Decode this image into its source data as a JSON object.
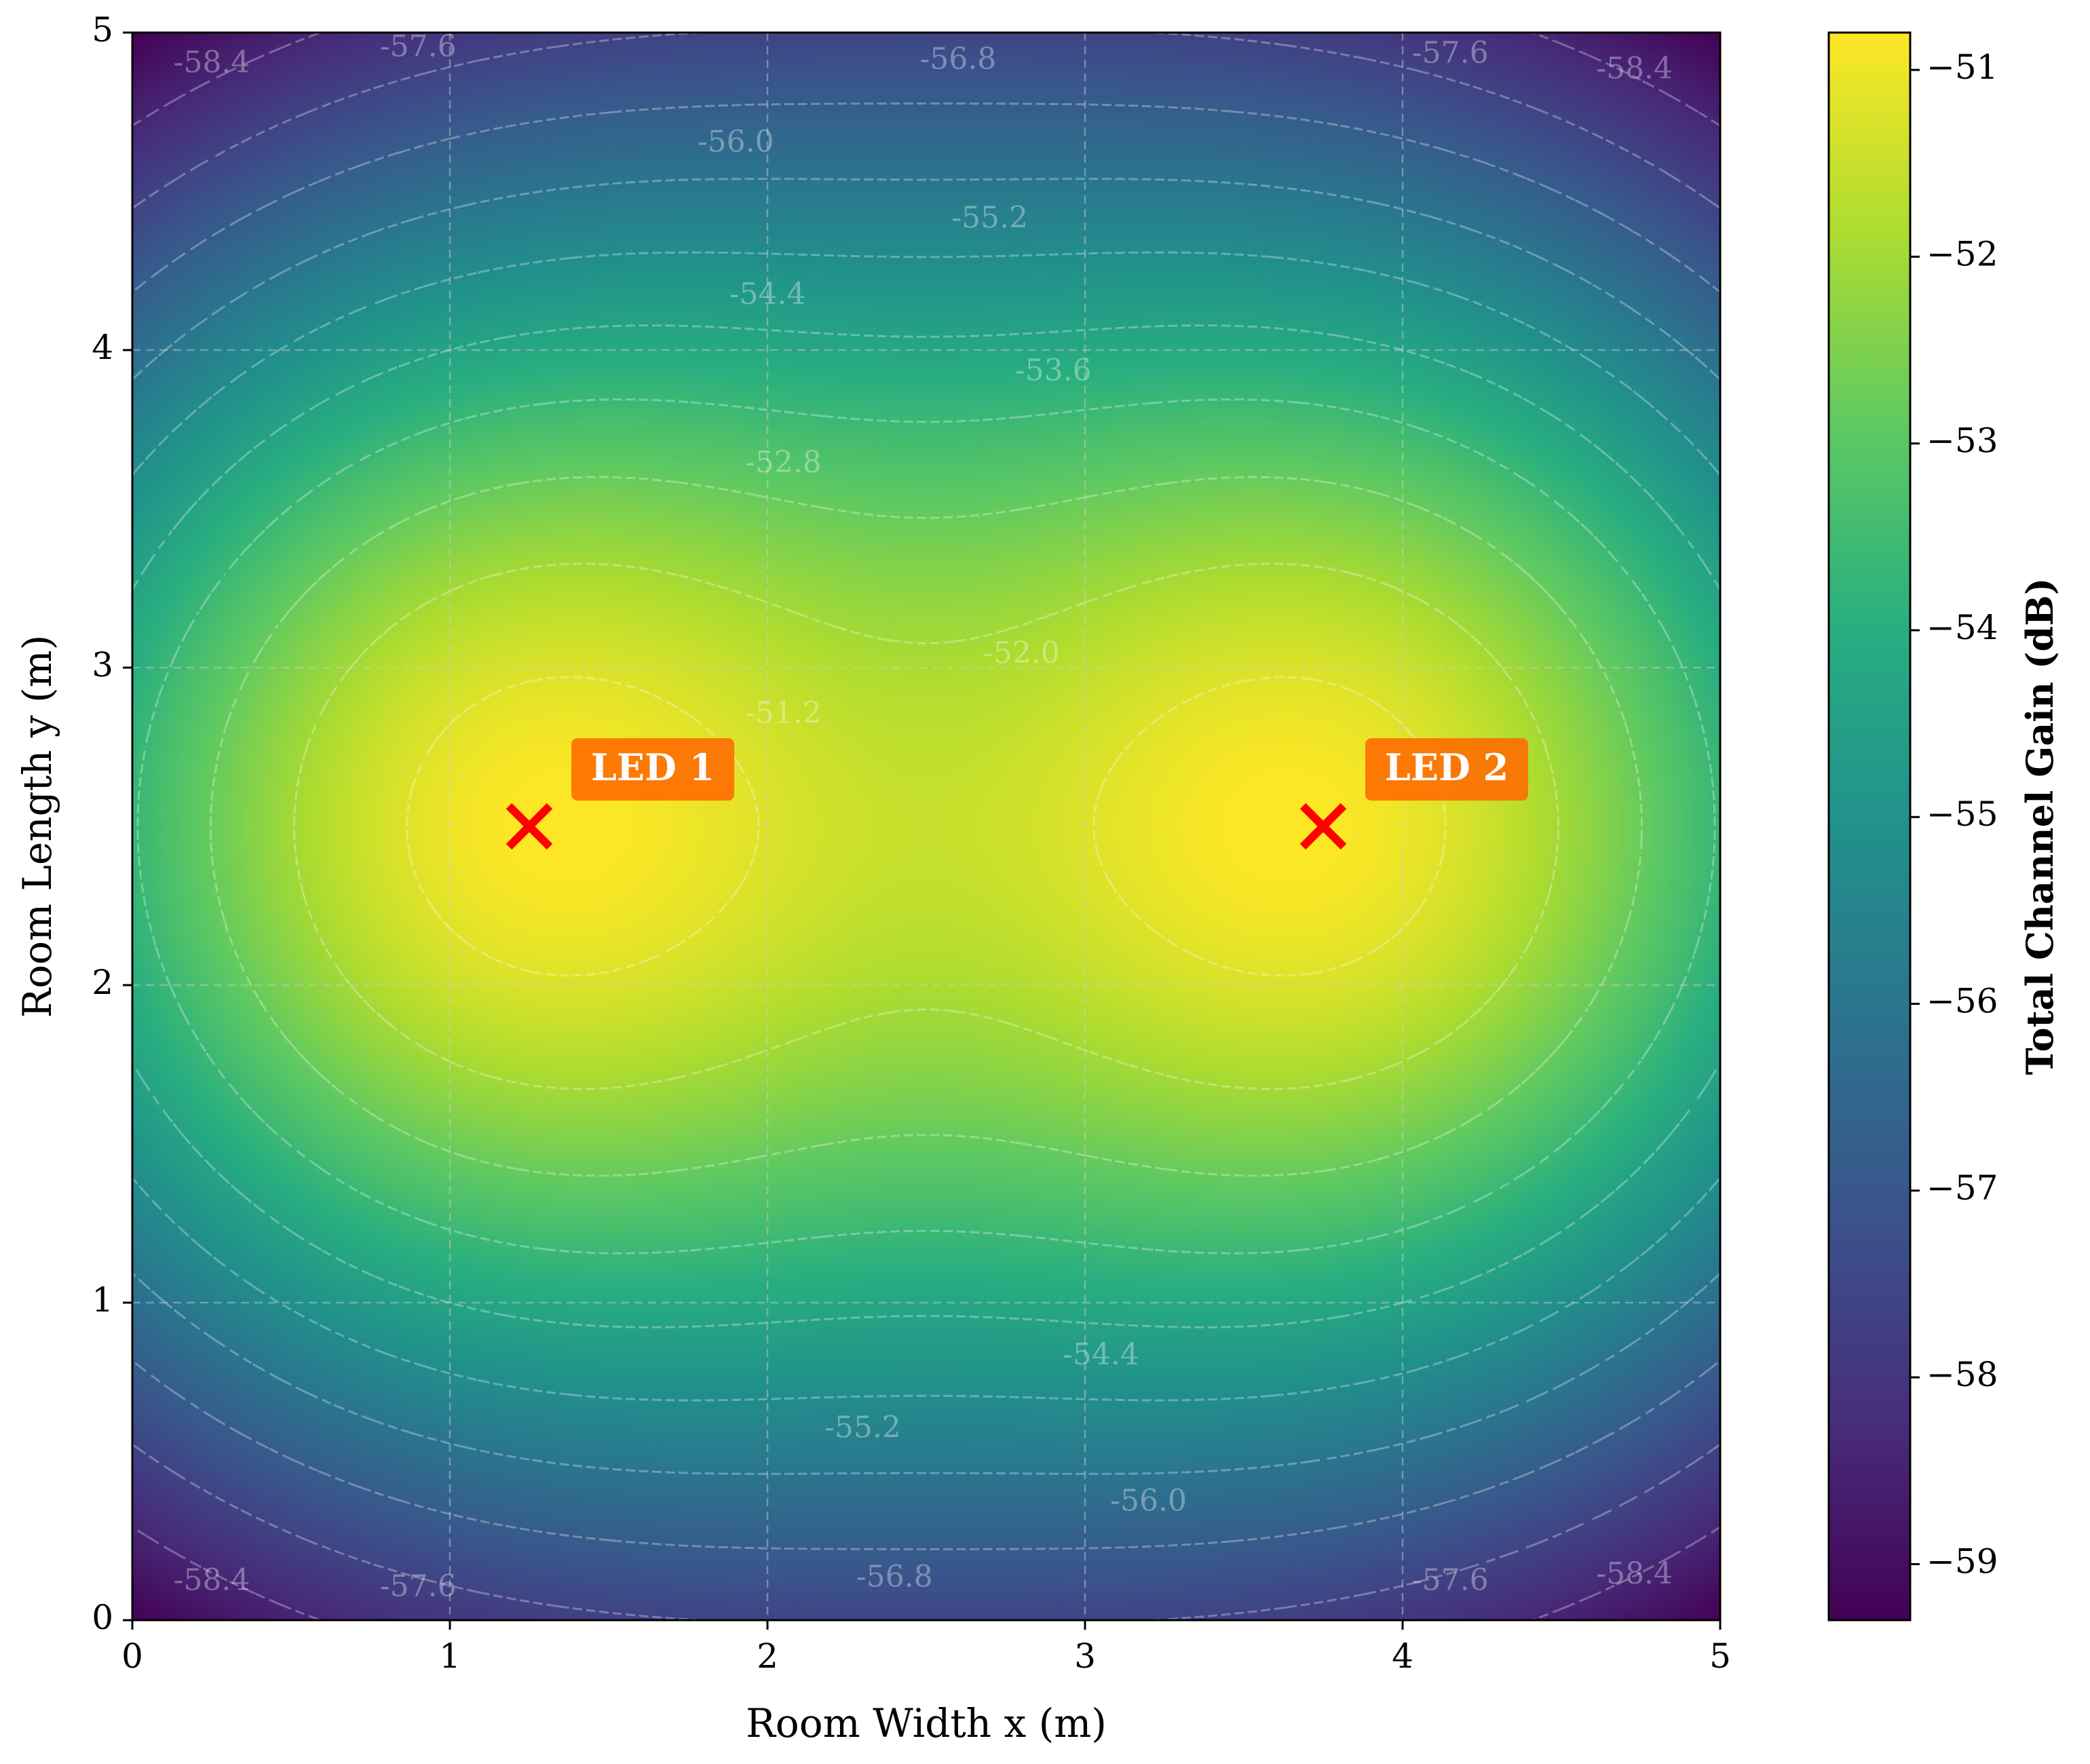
{
  "chart_data": {
    "type": "heatmap",
    "title": "",
    "xlabel": "Room Width x (m)",
    "ylabel": "Room Length y (m)",
    "xlim": [
      0,
      5
    ],
    "ylim": [
      0,
      5
    ],
    "xticks": [
      "0",
      "1",
      "2",
      "3",
      "4",
      "5"
    ],
    "yticks": [
      "0",
      "1",
      "2",
      "3",
      "4",
      "5"
    ],
    "grid": true,
    "colormap": "viridis",
    "value_range": [
      -59.3,
      -50.8
    ],
    "colorbar": {
      "label": "Total Channel Gain (dB)",
      "range": [
        -59.3,
        -50.8
      ],
      "ticks": [
        "−51",
        "−52",
        "−53",
        "−54",
        "−55",
        "−56",
        "−57",
        "−58",
        "−59"
      ]
    },
    "leds": [
      {
        "label": "LED 1",
        "x": 1.25,
        "y": 2.5
      },
      {
        "label": "LED 2",
        "x": 3.75,
        "y": 2.5
      }
    ],
    "contour_levels": [
      -58.4,
      -57.6,
      -56.8,
      -56.0,
      -55.2,
      -54.4,
      -53.6,
      -52.8,
      -52.0,
      -51.2
    ],
    "contour_labels": [
      {
        "text": "-58.4",
        "x": 0.25,
        "y": 4.9
      },
      {
        "text": "-57.6",
        "x": 0.9,
        "y": 4.95
      },
      {
        "text": "-56.8",
        "x": 2.6,
        "y": 4.91
      },
      {
        "text": "-57.6",
        "x": 4.15,
        "y": 4.93
      },
      {
        "text": "-58.4",
        "x": 4.73,
        "y": 4.88
      },
      {
        "text": "-56.0",
        "x": 1.9,
        "y": 4.65
      },
      {
        "text": "-55.2",
        "x": 2.7,
        "y": 4.41
      },
      {
        "text": "-54.4",
        "x": 2.0,
        "y": 4.17
      },
      {
        "text": "-53.6",
        "x": 2.9,
        "y": 3.93
      },
      {
        "text": "-52.8",
        "x": 2.05,
        "y": 3.64
      },
      {
        "text": "-52.0",
        "x": 2.8,
        "y": 3.04
      },
      {
        "text": "-51.2",
        "x": 2.05,
        "y": 2.85
      },
      {
        "text": "-54.4",
        "x": 3.05,
        "y": 0.83
      },
      {
        "text": "-55.2",
        "x": 2.3,
        "y": 0.6
      },
      {
        "text": "-56.0",
        "x": 3.2,
        "y": 0.37
      },
      {
        "text": "-56.8",
        "x": 2.4,
        "y": 0.13
      },
      {
        "text": "-58.4",
        "x": 0.25,
        "y": 0.12
      },
      {
        "text": "-57.6",
        "x": 0.9,
        "y": 0.1
      },
      {
        "text": "-57.6",
        "x": 4.15,
        "y": 0.12
      },
      {
        "text": "-58.4",
        "x": 4.73,
        "y": 0.14
      }
    ]
  },
  "colors": {
    "led_marker": "#ff0000",
    "led_label_bg": "#ff6a00",
    "grid": "#cfcfcf"
  }
}
